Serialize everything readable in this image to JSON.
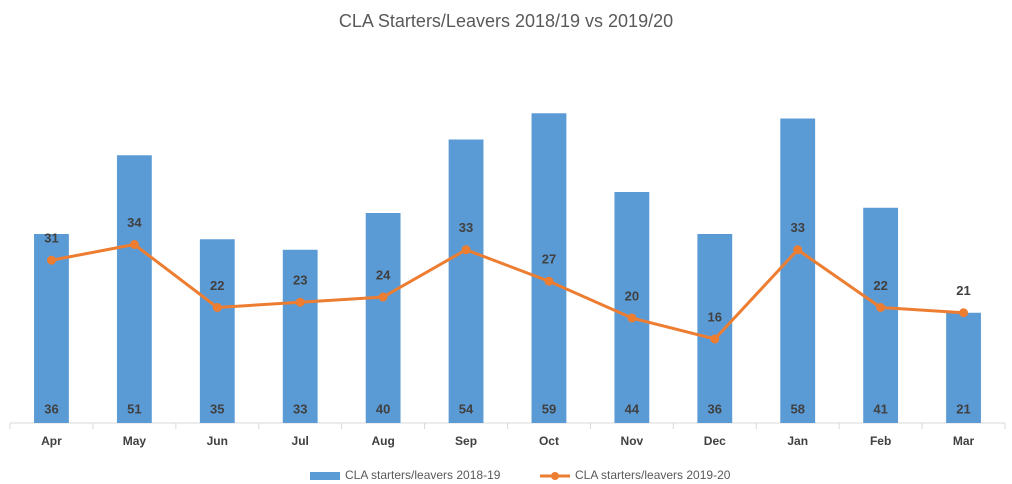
{
  "chart_data": {
    "type": "combo",
    "title": "CLA Starters/Leavers 2018/19 vs 2019/20",
    "categories": [
      "Apr",
      "May",
      "Jun",
      "Jul",
      "Aug",
      "Sep",
      "Oct",
      "Nov",
      "Dec",
      "Jan",
      "Feb",
      "Mar"
    ],
    "series": [
      {
        "name": "CLA starters/leavers 2018-19",
        "type": "bar",
        "color": "#5b9bd5",
        "values": [
          36,
          51,
          35,
          33,
          40,
          54,
          59,
          44,
          36,
          58,
          41,
          21
        ]
      },
      {
        "name": "CLA starters/leavers 2019-20",
        "type": "line",
        "color": "#ed7d31",
        "values": [
          31,
          34,
          22,
          23,
          24,
          33,
          27,
          20,
          16,
          33,
          22,
          21
        ]
      }
    ],
    "ylim": [
      0,
      70
    ],
    "grid": false,
    "legend": "bottom"
  }
}
